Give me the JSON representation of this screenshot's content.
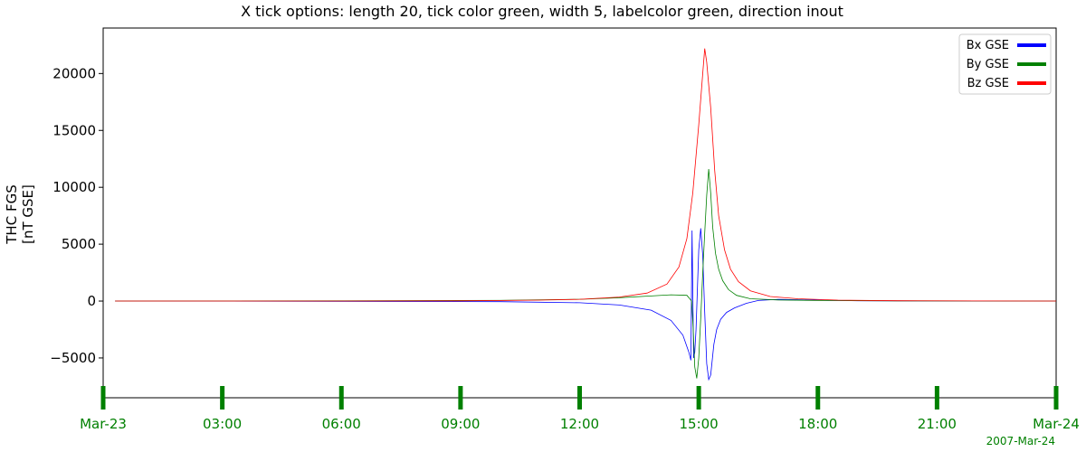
{
  "chart_data": {
    "type": "line",
    "title": "X tick options: length 20, tick color green, width 5, labelcolor green, direction inout",
    "ylabel_lines": [
      "THC FGS",
      "[nT GSE]"
    ],
    "xlim_hours": [
      0,
      24
    ],
    "ylim": [
      -8500,
      24000
    ],
    "y_ticks": [
      -5000,
      0,
      5000,
      10000,
      15000,
      20000
    ],
    "y_tick_labels": [
      "−5000",
      "0",
      "5000",
      "10000",
      "15000",
      "20000"
    ],
    "x_ticks": [
      0,
      3,
      6,
      9,
      12,
      15,
      18,
      21,
      24
    ],
    "x_tick_labels": [
      "Mar-23",
      "03:00",
      "06:00",
      "09:00",
      "12:00",
      "15:00",
      "18:00",
      "21:00",
      "Mar-24"
    ],
    "date_label": "2007-Mar-24",
    "tick_color": "#008000",
    "label_color": "#008000",
    "legend_position": "top-right",
    "series": [
      {
        "name": "Bx GSE",
        "color": "#0000ff",
        "x": [
          0.3,
          6,
          10,
          12,
          13,
          13.8,
          14.3,
          14.6,
          14.75,
          14.8,
          14.83,
          14.87,
          14.9,
          14.93,
          14.97,
          15.0,
          15.05,
          15.1,
          15.15,
          15.2,
          15.25,
          15.3,
          15.33,
          15.38,
          15.45,
          15.55,
          15.7,
          15.9,
          16.2,
          16.5,
          17,
          18,
          19,
          21,
          24
        ],
        "y": [
          0,
          -20,
          -50,
          -150,
          -350,
          -800,
          -1700,
          -3000,
          -4500,
          -5200,
          6200,
          -5000,
          -4500,
          -2500,
          1500,
          4500,
          6400,
          4000,
          -1000,
          -5500,
          -6900,
          -6500,
          -5500,
          -3800,
          -2500,
          -1600,
          -1000,
          -600,
          -200,
          50,
          150,
          80,
          30,
          10,
          0
        ]
      },
      {
        "name": "By GSE",
        "color": "#008000",
        "x": [
          0.3,
          6,
          10,
          12,
          13,
          13.8,
          14.3,
          14.7,
          14.82,
          14.86,
          14.9,
          14.95,
          15.0,
          15.05,
          15.1,
          15.15,
          15.2,
          15.25,
          15.3,
          15.35,
          15.42,
          15.5,
          15.6,
          15.75,
          15.95,
          16.3,
          17,
          18,
          20,
          24
        ],
        "y": [
          0,
          20,
          60,
          150,
          300,
          450,
          550,
          500,
          0,
          -2500,
          -5800,
          -6800,
          -5000,
          -1500,
          2500,
          6000,
          9300,
          11600,
          9500,
          6500,
          4200,
          2800,
          1800,
          1000,
          500,
          200,
          100,
          50,
          20,
          0
        ]
      },
      {
        "name": "Bz GSE",
        "color": "#ff0000",
        "x": [
          0.3,
          6,
          9,
          11,
          12,
          13,
          13.7,
          14.2,
          14.5,
          14.7,
          14.85,
          15.0,
          15.1,
          15.15,
          15.2,
          15.3,
          15.4,
          15.5,
          15.65,
          15.8,
          16.0,
          16.3,
          16.8,
          17.5,
          18.5,
          20,
          22,
          24
        ],
        "y": [
          0,
          0,
          20,
          80,
          150,
          350,
          700,
          1500,
          3000,
          5500,
          9500,
          15500,
          20000,
          22200,
          21000,
          17000,
          11500,
          7500,
          4500,
          2800,
          1700,
          900,
          400,
          200,
          80,
          30,
          10,
          0
        ]
      }
    ]
  }
}
